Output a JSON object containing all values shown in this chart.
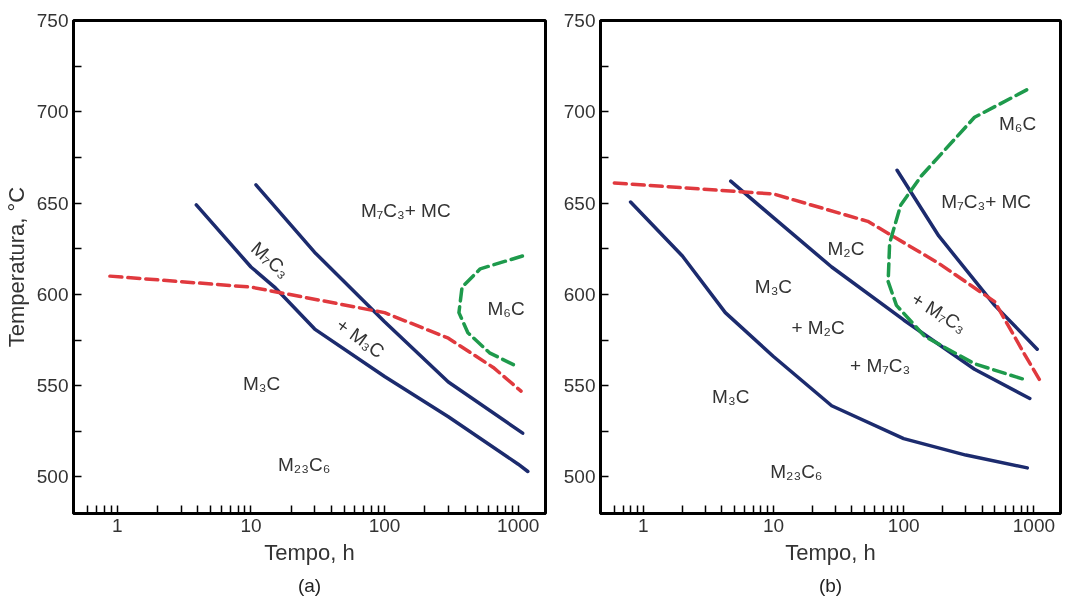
{
  "chart_data": [
    {
      "type": "line",
      "xlabel": "Tempo, h",
      "ylabel": "Temperatura, °C",
      "log": "x",
      "grid": false,
      "marker": "none",
      "xlim": [
        0.47,
        1600
      ],
      "ylim": [
        480,
        750
      ],
      "xticks": [
        {
          "value": 0.6,
          "label": null
        },
        {
          "value": 0.7,
          "label": null
        },
        {
          "value": 0.8,
          "label": null
        },
        {
          "value": 0.9,
          "label": null
        },
        1,
        {
          "value": 2,
          "label": null
        },
        {
          "value": 3,
          "label": null
        },
        {
          "value": 4,
          "label": null
        },
        {
          "value": 5,
          "label": null
        },
        {
          "value": 6,
          "label": null
        },
        {
          "value": 7,
          "label": null
        },
        {
          "value": 8,
          "label": null
        },
        {
          "value": 9,
          "label": null
        },
        10,
        {
          "value": 20,
          "label": null
        },
        {
          "value": 30,
          "label": null
        },
        {
          "value": 40,
          "label": null
        },
        {
          "value": 50,
          "label": null
        },
        {
          "value": 60,
          "label": null
        },
        {
          "value": 70,
          "label": null
        },
        {
          "value": 80,
          "label": null
        },
        {
          "value": 90,
          "label": null
        },
        100,
        {
          "value": 200,
          "label": null
        },
        {
          "value": 300,
          "label": null
        },
        {
          "value": 400,
          "label": null
        },
        {
          "value": 500,
          "label": null
        },
        {
          "value": 600,
          "label": null
        },
        {
          "value": 700,
          "label": null
        },
        {
          "value": 800,
          "label": null
        },
        {
          "value": 900,
          "label": null
        },
        1000
      ],
      "yticks": [
        500,
        {
          "value": 525,
          "label": null
        },
        550,
        {
          "value": 575,
          "label": null
        },
        600,
        {
          "value": 625,
          "label": null
        },
        650,
        {
          "value": 675,
          "label": null
        },
        700,
        {
          "value": 725,
          "label": null
        },
        750
      ],
      "series": [
        {
          "color": "#1c2b6e",
          "line_style": "solid",
          "x": [
            3.9,
            10,
            15,
            30,
            100,
            300,
            1000,
            1180
          ],
          "values": [
            649,
            615,
            604,
            581,
            555,
            533,
            507,
            503
          ]
        },
        {
          "color": "#1c2b6e",
          "line_style": "solid",
          "x": [
            10.9,
            30,
            100,
            300,
            1080
          ],
          "values": [
            660,
            623,
            585,
            552,
            524
          ]
        },
        {
          "color": "#e0393e",
          "line_style": "dashed",
          "x": [
            0.88,
            10,
            100,
            300,
            650,
            1050
          ],
          "values": [
            610,
            604,
            590,
            576,
            560,
            547
          ]
        },
        {
          "color": "#1e9a4c",
          "line_style": "dashed",
          "x": [
            920,
            610,
            420,
            360,
            380,
            520,
            1075
          ],
          "values": [
            561.5,
            568,
            579,
            590,
            604,
            614,
            621
          ]
        }
      ],
      "annotations": [
        "M₇C₃+ MC",
        "M₇C₃",
        "+ M₃C",
        "M₆C",
        "M₃C",
        "M₂₃C₆",
        "(a)"
      ]
    },
    {
      "type": "line",
      "xlabel": "Tempo, h",
      "log": "x",
      "grid": false,
      "marker": "none",
      "xlim": [
        0.47,
        1600
      ],
      "ylim": [
        480,
        750
      ],
      "xticks": [
        {
          "value": 0.6,
          "label": null
        },
        {
          "value": 0.7,
          "label": null
        },
        {
          "value": 0.8,
          "label": null
        },
        {
          "value": 0.9,
          "label": null
        },
        1,
        {
          "value": 2,
          "label": null
        },
        {
          "value": 3,
          "label": null
        },
        {
          "value": 4,
          "label": null
        },
        {
          "value": 5,
          "label": null
        },
        {
          "value": 6,
          "label": null
        },
        {
          "value": 7,
          "label": null
        },
        {
          "value": 8,
          "label": null
        },
        {
          "value": 9,
          "label": null
        },
        10,
        {
          "value": 20,
          "label": null
        },
        {
          "value": 30,
          "label": null
        },
        {
          "value": 40,
          "label": null
        },
        {
          "value": 50,
          "label": null
        },
        {
          "value": 60,
          "label": null
        },
        {
          "value": 70,
          "label": null
        },
        {
          "value": 80,
          "label": null
        },
        {
          "value": 90,
          "label": null
        },
        100,
        {
          "value": 200,
          "label": null
        },
        {
          "value": 300,
          "label": null
        },
        {
          "value": 400,
          "label": null
        },
        {
          "value": 500,
          "label": null
        },
        {
          "value": 600,
          "label": null
        },
        {
          "value": 700,
          "label": null
        },
        {
          "value": 800,
          "label": null
        },
        {
          "value": 900,
          "label": null
        },
        1000
      ],
      "yticks": [
        500,
        {
          "value": 525,
          "label": null
        },
        550,
        {
          "value": 575,
          "label": null
        },
        600,
        {
          "value": 625,
          "label": null
        },
        650,
        {
          "value": 675,
          "label": null
        },
        700,
        {
          "value": 725,
          "label": null
        },
        750
      ],
      "series": [
        {
          "color": "#1c2b6e",
          "line_style": "solid",
          "x": [
            0.8,
            2,
            4.27,
            10,
            28,
            100,
            300,
            890
          ],
          "values": [
            650.6,
            621,
            590,
            566,
            539,
            521,
            512,
            505
          ]
        },
        {
          "color": "#1c2b6e",
          "line_style": "solid",
          "x": [
            4.7,
            10,
            28,
            100,
            350,
            930
          ],
          "values": [
            662,
            642,
            615,
            586,
            559,
            543
          ]
        },
        {
          "color": "#1c2b6e",
          "line_style": "solid",
          "x": [
            89,
            186,
            500,
            1060
          ],
          "values": [
            668,
            632,
            594,
            570
          ]
        },
        {
          "color": "#e0393e",
          "line_style": "dashed",
          "x": [
            0.6,
            10,
            53,
            186,
            500,
            850,
            1100
          ],
          "values": [
            661,
            655,
            640,
            617,
            596,
            567,
            553.5
          ]
        },
        {
          "color": "#1e9a4c",
          "line_style": "dashed",
          "x": [
            880,
            350,
            137,
            95,
            78,
            76,
            88,
            145,
            350,
            880
          ],
          "values": [
            712,
            697,
            665,
            649,
            628,
            607,
            594,
            577,
            562,
            553
          ]
        }
      ],
      "annotations": [
        "M₆C",
        "M₇C₃+ MC",
        "M₂C",
        "M₃C",
        "+ M₂C",
        "+ M₇C₃",
        "+ M₇C₃",
        "M₃C",
        "M₂₃C₆",
        "(b)"
      ]
    }
  ]
}
